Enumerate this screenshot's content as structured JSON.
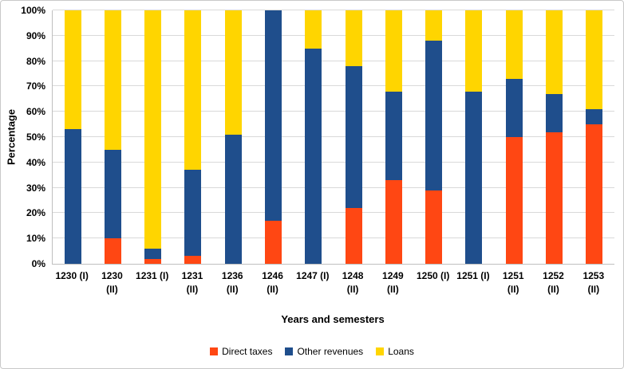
{
  "chart_data": {
    "type": "bar",
    "stacked": true,
    "percent_stacked": true,
    "title": "",
    "xlabel": "Years and semesters",
    "ylabel": "Percentage",
    "ylim": [
      0,
      100
    ],
    "grid": true,
    "legend_position": "bottom",
    "y_ticks": [
      "0%",
      "10%",
      "20%",
      "30%",
      "40%",
      "50%",
      "60%",
      "70%",
      "80%",
      "90%",
      "100%"
    ],
    "categories": [
      "1230 (I)",
      "1230\n(II)",
      "1231 (I)",
      "1231\n(II)",
      "1236\n(II)",
      "1246\n(II)",
      "1247 (I)",
      "1248\n(II)",
      "1249\n(II)",
      "1250 (I)",
      "1251 (I)",
      "1251\n(II)",
      "1252\n(II)",
      "1253\n(II)"
    ],
    "series": [
      {
        "name": "Direct taxes",
        "color": "#FF4713",
        "values": [
          0,
          10,
          2,
          3,
          0,
          17,
          0,
          22,
          33,
          29,
          0,
          50,
          52,
          55
        ]
      },
      {
        "name": "Other revenues",
        "color": "#1F4E8C",
        "values": [
          53,
          35,
          4,
          34,
          51,
          83,
          85,
          56,
          35,
          59,
          68,
          23,
          15,
          6
        ]
      },
      {
        "name": "Loans",
        "color": "#FFD500",
        "values": [
          47,
          55,
          94,
          63,
          49,
          0,
          15,
          22,
          32,
          12,
          32,
          27,
          33,
          39
        ]
      }
    ],
    "colors": {
      "direct_taxes": "#FF4713",
      "other_revenues": "#1F4E8C",
      "loans": "#FFD500",
      "gridline": "#d9d9d9",
      "axis_line": "#bfbfbf"
    }
  }
}
